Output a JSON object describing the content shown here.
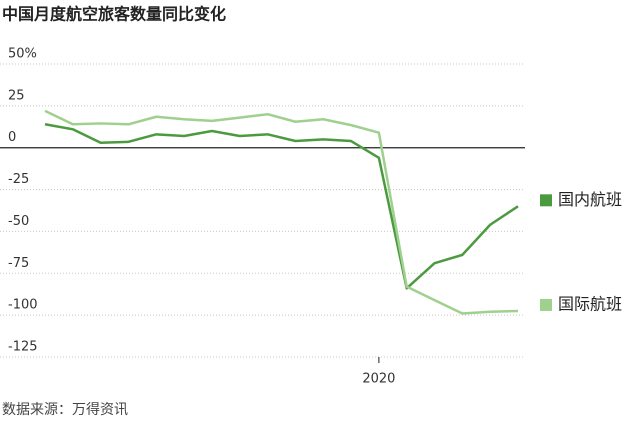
{
  "chart_data": {
    "type": "line",
    "title": "中国月度航空旅客数量同比变化",
    "source": "数据来源：万得资讯",
    "categories": [
      null,
      null,
      null,
      null,
      null,
      null,
      null,
      null,
      null,
      null,
      null,
      null,
      "2020",
      null,
      null,
      null,
      null,
      null
    ],
    "series": [
      {
        "name": "国内航班",
        "color": "#4c9a3f",
        "values": [
          14,
          11,
          3,
          3.5,
          8,
          7,
          10,
          7,
          8,
          4,
          5,
          4,
          -6,
          -84,
          -69,
          -64,
          -46,
          -35
        ]
      },
      {
        "name": "国际航班",
        "color": "#9fd08e",
        "values": [
          22,
          14,
          14.5,
          14,
          18.5,
          17,
          16,
          18,
          20,
          15.5,
          17,
          13.5,
          9,
          -83,
          -91,
          -99,
          -98,
          -97.5
        ]
      }
    ],
    "ylim": [
      -125,
      50
    ],
    "yticks": [
      {
        "value": 50,
        "label": "50%"
      },
      25,
      0,
      -25,
      -50,
      -75,
      -100,
      -125
    ],
    "grid": true
  }
}
